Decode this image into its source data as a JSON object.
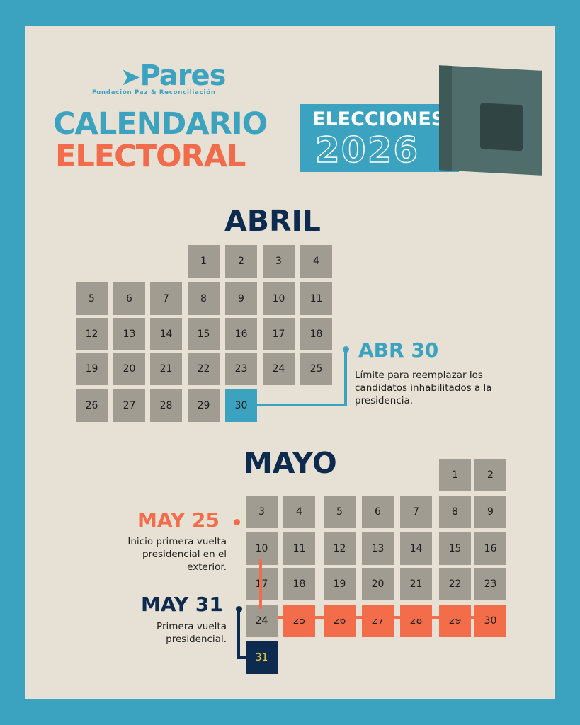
{
  "header": {
    "logo_name": "Pares",
    "logo_subtitle": "Fundación Paz & Reconciliación",
    "title_line1": "CALENDARIO",
    "title_line2": "ELECTORAL",
    "banner_label": "ELECCIONES",
    "banner_year": "2026",
    "image": "ballot-box"
  },
  "colors": {
    "blue": "#3ba3c0",
    "orange": "#f46d4a",
    "navy": "#0d2a4f",
    "gray": "#a19c92",
    "background": "#e7e0d4"
  },
  "april": {
    "title": "ABRIL",
    "days": 30,
    "start_col": 3,
    "highlight": {
      "30": "b"
    },
    "event": {
      "title": "ABR 30",
      "description": "Límite para reemplazar los candidatos inhabilitados a la presidencia."
    }
  },
  "may": {
    "title": "MAYO",
    "days": 31,
    "start_col": 5,
    "highlight": {
      "25": "o",
      "26": "o",
      "27": "o",
      "28": "o",
      "29": "o",
      "30": "o",
      "31": "n"
    },
    "events": [
      {
        "title": "MAY 25",
        "description": "Inicio primera vuelta presidencial en el exterior."
      },
      {
        "title": "MAY 31",
        "description": "Primera vuelta presidencial."
      }
    ]
  }
}
